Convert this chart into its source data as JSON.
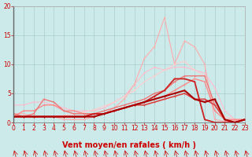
{
  "xlabel": "Vent moyen/en rafales ( km/h )",
  "xlim": [
    0,
    23
  ],
  "ylim": [
    0,
    20
  ],
  "xticks": [
    0,
    1,
    2,
    3,
    4,
    5,
    6,
    7,
    8,
    9,
    10,
    11,
    12,
    13,
    14,
    15,
    16,
    17,
    18,
    19,
    20,
    21,
    22,
    23
  ],
  "yticks": [
    0,
    5,
    10,
    15,
    20
  ],
  "bg_color": "#cceaea",
  "grid_color": "#aacccc",
  "lines": [
    {
      "x": [
        0,
        1,
        2,
        3,
        4,
        5,
        6,
        7,
        8,
        9,
        10,
        11,
        12,
        13,
        14,
        15,
        16,
        17,
        18,
        19,
        20,
        21,
        22,
        23
      ],
      "y": [
        3,
        3,
        3.5,
        3.5,
        3,
        2.5,
        2,
        2,
        2,
        2.5,
        3.5,
        4.5,
        6.5,
        8.5,
        9.5,
        9,
        9.5,
        9.5,
        9,
        8.5,
        6,
        2,
        0.5,
        0.5
      ],
      "color": "#ffbbcc",
      "lw": 0.8,
      "marker": "+"
    },
    {
      "x": [
        0,
        1,
        2,
        3,
        4,
        5,
        6,
        7,
        8,
        9,
        10,
        11,
        12,
        13,
        14,
        15,
        16,
        17,
        18,
        19,
        20,
        21,
        22,
        23
      ],
      "y": [
        1.5,
        1.5,
        1,
        1,
        1,
        0.5,
        0.5,
        0.5,
        1,
        1.5,
        2.5,
        4,
        6.5,
        11,
        13,
        18,
        10,
        14,
        13,
        10,
        0.5,
        0.2,
        0.3,
        0.5
      ],
      "color": "#ffaaaa",
      "lw": 0.8,
      "marker": "+"
    },
    {
      "x": [
        0,
        1,
        2,
        3,
        4,
        5,
        6,
        7,
        8,
        9,
        10,
        11,
        12,
        13,
        14,
        15,
        16,
        17,
        18,
        19,
        20,
        21,
        22,
        23
      ],
      "y": [
        1,
        1,
        1,
        1,
        1,
        1.2,
        1.5,
        1.8,
        2.2,
        2.8,
        3.5,
        4.5,
        5.5,
        7,
        8,
        9,
        10,
        10.5,
        9,
        8,
        3,
        1,
        0.5,
        0.5
      ],
      "color": "#ffcccc",
      "lw": 0.8,
      "marker": "+"
    },
    {
      "x": [
        0,
        1,
        2,
        3,
        4,
        5,
        6,
        7,
        8,
        9,
        10,
        11,
        12,
        13,
        14,
        15,
        16,
        17,
        18,
        19,
        20,
        21,
        22,
        23
      ],
      "y": [
        1,
        2,
        2,
        3,
        3,
        2,
        2,
        1.5,
        1.5,
        1.5,
        2,
        2.5,
        3,
        3.5,
        4,
        4.5,
        5.5,
        6.5,
        7.5,
        7,
        2,
        0.5,
        0.5,
        0.5
      ],
      "color": "#ff8888",
      "lw": 1.0,
      "marker": "+"
    },
    {
      "x": [
        0,
        1,
        2,
        3,
        4,
        5,
        6,
        7,
        8,
        9,
        10,
        11,
        12,
        13,
        14,
        15,
        16,
        17,
        18,
        19,
        20,
        21,
        22,
        23
      ],
      "y": [
        1.5,
        1,
        1.5,
        4,
        3.5,
        2,
        1.5,
        1.5,
        1.5,
        2,
        2.5,
        3,
        3.5,
        4,
        5,
        5.5,
        7,
        8,
        8,
        8,
        3,
        0.5,
        0,
        0.5
      ],
      "color": "#ee7777",
      "lw": 1.0,
      "marker": "+"
    },
    {
      "x": [
        0,
        1,
        2,
        3,
        4,
        5,
        6,
        7,
        8,
        9,
        10,
        11,
        12,
        13,
        14,
        15,
        16,
        17,
        18,
        19,
        20,
        21,
        22,
        23
      ],
      "y": [
        1,
        1,
        1,
        1,
        1,
        1,
        1,
        1,
        1.5,
        1.5,
        2,
        2.5,
        3,
        3,
        3.5,
        4,
        4.5,
        5,
        4,
        4,
        3,
        0.5,
        0,
        0.5
      ],
      "color": "#dd4444",
      "lw": 1.2,
      "marker": "+"
    },
    {
      "x": [
        0,
        1,
        2,
        3,
        4,
        5,
        6,
        7,
        8,
        9,
        10,
        11,
        12,
        13,
        14,
        15,
        16,
        17,
        18,
        19,
        20,
        21,
        22,
        23
      ],
      "y": [
        1,
        1,
        1,
        1,
        1,
        1,
        1,
        1,
        1.5,
        1.5,
        2,
        2.5,
        3,
        3.5,
        4.5,
        5.5,
        7.5,
        7.5,
        7,
        0.5,
        0,
        0,
        0,
        0.5
      ],
      "color": "#cc2222",
      "lw": 1.3,
      "marker": "+"
    },
    {
      "x": [
        0,
        1,
        2,
        3,
        4,
        5,
        6,
        7,
        8,
        9,
        10,
        11,
        12,
        13,
        14,
        15,
        16,
        17,
        18,
        19,
        20,
        21,
        22,
        23
      ],
      "y": [
        1,
        1,
        1,
        1,
        1,
        1,
        1,
        1,
        1,
        1.5,
        2,
        2.5,
        3,
        3.5,
        4,
        4.5,
        5,
        5.5,
        4,
        3.5,
        4,
        0.5,
        0,
        0.5
      ],
      "color": "#aa0000",
      "lw": 1.5,
      "marker": "+"
    }
  ],
  "arrow_color": "#cc0000",
  "xlabel_color": "#cc0000",
  "ytick_color": "#cc0000",
  "xtick_color": "#cc0000",
  "label_fontsize": 7,
  "tick_fontsize": 5.5
}
